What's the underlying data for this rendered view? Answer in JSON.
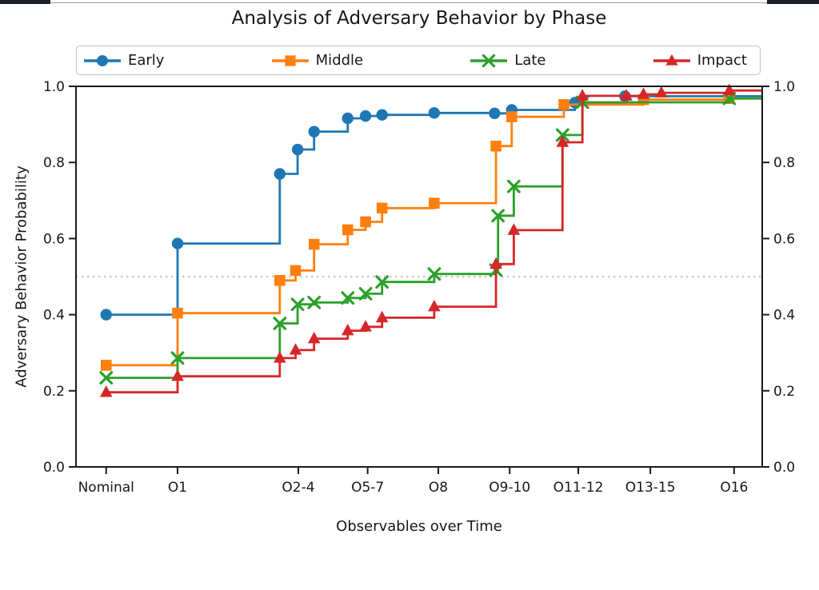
{
  "window": {
    "top_edge_bar_color": "#1d2026",
    "top_edge_line_color": "#9a9a9a"
  },
  "chart_data": {
    "type": "line",
    "step_style": "post",
    "title": "Analysis of Adversary Behavior by Phase",
    "xlabel": "Observables over Time",
    "ylabel": "Adversary Behavior Probability",
    "ylim": [
      0.0,
      1.0
    ],
    "y_ticks": [
      0.0,
      0.2,
      0.4,
      0.6,
      0.8,
      1.0
    ],
    "y_axis_mirrored_right": true,
    "grid": "off",
    "legend_position": "top-horizontal",
    "reference_line": {
      "y": 0.5,
      "style": "dotted",
      "color": "#c9c9c9"
    },
    "x_ticks": [
      {
        "label": "Nominal",
        "pos": 0.044
      },
      {
        "label": "O1",
        "pos": 0.148
      },
      {
        "label": "O2-4",
        "pos": 0.324
      },
      {
        "label": "O5-7",
        "pos": 0.425
      },
      {
        "label": "O8",
        "pos": 0.528
      },
      {
        "label": "O9-10",
        "pos": 0.632
      },
      {
        "label": "O11-12",
        "pos": 0.732
      },
      {
        "label": "O13-15",
        "pos": 0.837
      },
      {
        "label": "O16",
        "pos": 0.959
      }
    ],
    "series": [
      {
        "name": "Early",
        "color": "#1f77b4",
        "marker": "circle",
        "points": [
          [
            0.044,
            0.4
          ],
          [
            0.148,
            0.587
          ],
          [
            0.297,
            0.77
          ],
          [
            0.323,
            0.834
          ],
          [
            0.347,
            0.881
          ],
          [
            0.396,
            0.916
          ],
          [
            0.422,
            0.922
          ],
          [
            0.446,
            0.925
          ],
          [
            0.522,
            0.93
          ],
          [
            0.61,
            0.929
          ],
          [
            0.635,
            0.938
          ],
          [
            0.727,
            0.957
          ],
          [
            0.8,
            0.974
          ]
        ]
      },
      {
        "name": "Middle",
        "color": "#ff7f0e",
        "marker": "square",
        "points": [
          [
            0.044,
            0.267
          ],
          [
            0.148,
            0.404
          ],
          [
            0.297,
            0.49
          ],
          [
            0.32,
            0.516
          ],
          [
            0.347,
            0.585
          ],
          [
            0.396,
            0.623
          ],
          [
            0.422,
            0.644
          ],
          [
            0.446,
            0.68
          ],
          [
            0.522,
            0.693
          ],
          [
            0.612,
            0.843
          ],
          [
            0.635,
            0.92
          ],
          [
            0.711,
            0.952
          ],
          [
            0.827,
            0.965
          ],
          [
            0.952,
            0.968
          ]
        ]
      },
      {
        "name": "Late",
        "color": "#2ca02c",
        "marker": "x",
        "points": [
          [
            0.044,
            0.234
          ],
          [
            0.148,
            0.286
          ],
          [
            0.297,
            0.377
          ],
          [
            0.323,
            0.427
          ],
          [
            0.347,
            0.432
          ],
          [
            0.396,
            0.444
          ],
          [
            0.422,
            0.455
          ],
          [
            0.446,
            0.486
          ],
          [
            0.522,
            0.507
          ],
          [
            0.612,
            0.517
          ],
          [
            0.615,
            0.66
          ],
          [
            0.638,
            0.737
          ],
          [
            0.709,
            0.872
          ],
          [
            0.738,
            0.958
          ],
          [
            0.952,
            0.968
          ]
        ]
      },
      {
        "name": "Impact",
        "color": "#d62728",
        "marker": "triangle",
        "points": [
          [
            0.044,
            0.196
          ],
          [
            0.148,
            0.238
          ],
          [
            0.297,
            0.286
          ],
          [
            0.32,
            0.307
          ],
          [
            0.347,
            0.337
          ],
          [
            0.396,
            0.358
          ],
          [
            0.422,
            0.368
          ],
          [
            0.446,
            0.392
          ],
          [
            0.522,
            0.421
          ],
          [
            0.612,
            0.533
          ],
          [
            0.638,
            0.622
          ],
          [
            0.709,
            0.853
          ],
          [
            0.738,
            0.975
          ],
          [
            0.802,
            0.975
          ],
          [
            0.827,
            0.979
          ],
          [
            0.853,
            0.983
          ],
          [
            0.952,
            0.989
          ]
        ]
      }
    ]
  }
}
